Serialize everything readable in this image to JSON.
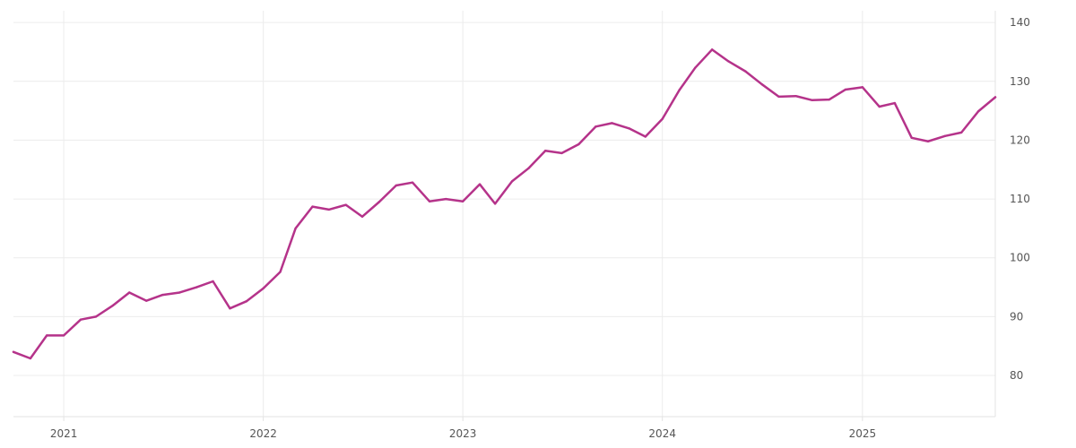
{
  "colors": {
    "series": "#b5338a",
    "grid": "#ececec",
    "text": "#555555"
  },
  "chart_data": {
    "type": "line",
    "title": "",
    "xlabel": "",
    "ylabel": "",
    "x_axis": {
      "min": "2020-10-01",
      "max": "2025-09-01",
      "ticks": [
        "2021",
        "2022",
        "2023",
        "2024",
        "2025"
      ]
    },
    "y_axis": {
      "position": "right",
      "min": 73,
      "max": 142,
      "ticks": [
        80,
        90,
        100,
        110,
        120,
        130,
        140
      ]
    },
    "grid": true,
    "legend": "none",
    "series": [
      {
        "x": [
          "2020-10",
          "2020-11",
          "2020-12",
          "2021-01",
          "2021-02",
          "2021-03",
          "2021-04",
          "2021-05",
          "2021-06",
          "2021-07",
          "2021-08",
          "2021-09",
          "2021-10",
          "2021-11",
          "2021-12",
          "2022-01",
          "2022-02",
          "2022-03",
          "2022-04",
          "2022-05",
          "2022-06",
          "2022-07",
          "2022-08",
          "2022-09",
          "2022-10",
          "2022-11",
          "2022-12",
          "2023-01",
          "2023-02",
          "2023-03",
          "2023-04",
          "2023-05",
          "2023-06",
          "2023-07",
          "2023-08",
          "2023-09",
          "2023-10",
          "2023-11",
          "2023-12",
          "2024-01",
          "2024-02",
          "2024-03",
          "2024-04",
          "2024-05",
          "2024-06",
          "2024-07",
          "2024-08",
          "2024-09",
          "2024-10",
          "2024-11",
          "2024-12",
          "2025-01",
          "2025-02",
          "2025-03",
          "2025-04",
          "2025-05",
          "2025-06",
          "2025-07",
          "2025-08",
          "2025-09"
        ],
        "values": [
          84.0,
          82.9,
          86.8,
          86.8,
          89.5,
          90.0,
          91.9,
          94.1,
          92.7,
          93.7,
          94.1,
          95.0,
          96.0,
          91.4,
          92.6,
          94.8,
          97.6,
          105.0,
          108.7,
          108.2,
          109.0,
          107.0,
          109.5,
          112.3,
          112.8,
          109.6,
          110.0,
          109.6,
          112.5,
          109.2,
          113.0,
          115.2,
          118.2,
          117.8,
          119.3,
          122.3,
          122.9,
          122.0,
          120.6,
          123.6,
          128.5,
          132.3,
          135.4,
          133.4,
          131.7,
          129.5,
          127.4,
          127.5,
          126.8,
          126.9,
          128.6,
          129.0,
          125.7,
          126.3,
          120.4,
          119.8,
          120.7,
          121.3,
          124.9,
          127.3
        ]
      }
    ]
  }
}
